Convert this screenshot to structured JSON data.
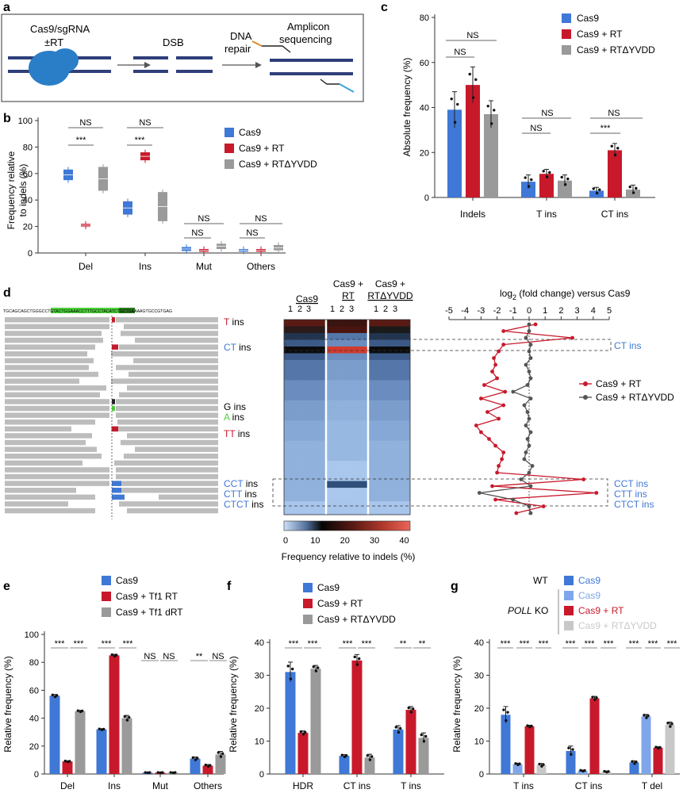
{
  "colors": {
    "blue": "#3f78d6",
    "red": "#c8192b",
    "gray": "#9a9a9a",
    "darkgray": "#555555",
    "lightblue": "#7fa6ea",
    "lightgray": "#c8c8c8",
    "green": "#4cd13a",
    "darkgreen": "#2a7a1e"
  },
  "panel_a": {
    "letter": "a",
    "step1": "Cas9/sgRNA",
    "step1b": "±RT",
    "step2": "DSB",
    "step3a": "DNA",
    "step3b": "repair",
    "step4a": "Amplicon",
    "step4b": "sequencing"
  },
  "panel_b": {
    "letter": "b",
    "ylabel1": "Frequency relative",
    "ylabel2": "to indels (%)",
    "yticks": [
      "0",
      "20",
      "40",
      "60",
      "80",
      "100"
    ],
    "sig": {
      "del_top": "NS",
      "del_bot": "***",
      "ins_top": "NS",
      "ins_bot": "***",
      "mut_top": "NS",
      "mut_bot": "NS",
      "oth_top": "NS",
      "oth_bot": "NS"
    },
    "legend": [
      "Cas9",
      "Cas9 + RT",
      "Cas9 + RTΔYVDD"
    ]
  },
  "panel_c": {
    "letter": "c",
    "ylabel": "Absolute frequency (%)",
    "yticks": [
      "0",
      "20",
      "40",
      "60",
      "80"
    ],
    "legend": [
      "Cas9",
      "Cas9 + RT",
      "Cas9 + RTΔYVDD"
    ],
    "sig": {
      "ind_top": "NS",
      "ind_bot": "NS",
      "t_top": "NS",
      "t_bot": "NS",
      "ct_top": "NS",
      "ct_bot": "***"
    }
  },
  "panel_d": {
    "letter": "d",
    "sequence": "TGCAGCAGCTGGGCCTGTACTGGAAACCTTTGCCTACATCTGCTGAAAAGTGCCGTGAG",
    "labels": [
      {
        "pre": "",
        "colored": "T",
        "post": " ins",
        "color": "red"
      },
      {
        "pre": "",
        "colored": "CT",
        "post": " ins",
        "color": "blue"
      },
      {
        "pre": "G",
        "colored": "",
        "post": " ins",
        "color": "none"
      },
      {
        "pre": "",
        "colored": "A",
        "post": " ins",
        "color": "green"
      },
      {
        "pre": "",
        "colored": "TT",
        "post": " ins",
        "color": "red"
      },
      {
        "pre": "",
        "colored": "CCT",
        "post": " ins",
        "color": "blue"
      },
      {
        "pre": "",
        "colored": "CTT",
        "post": " ins",
        "color": "blue"
      },
      {
        "pre": "",
        "colored": "CTCT",
        "post": " ins",
        "color": "blue"
      }
    ],
    "heat_headers": [
      "Cas9",
      "Cas9 +",
      "RT",
      "Cas9 +",
      "RTΔYVDD"
    ],
    "heat_reps": [
      "1",
      "2",
      "3",
      "1",
      "2",
      "3",
      "1",
      "2",
      "3"
    ],
    "cbar_ticks": [
      "0",
      "10",
      "20",
      "30",
      "40"
    ],
    "cbar_label": "Frequency relative to indels (%)",
    "fold_title": "log",
    "fold_title_sub": "2",
    "fold_title_rest": " (fold change) versus Cas9",
    "fold_ticks": [
      "-5",
      "-4",
      "-3",
      "-2",
      "-1",
      "0",
      "1",
      "2",
      "3",
      "4",
      "5"
    ],
    "fold_legend": [
      "Cas9 + RT",
      "Cas9 + RTΔYVDD"
    ],
    "fold_right_labels": [
      "CT ins",
      "CCT ins",
      "CTT ins",
      "CTCT ins"
    ]
  },
  "panel_e": {
    "letter": "e",
    "ylabel": "Relative frequency (%)",
    "yticks": [
      "0",
      "20",
      "40",
      "60",
      "80",
      "100"
    ],
    "legend": [
      "Cas9",
      "Cas9 + Tf1 RT",
      "Cas9 + Tf1 dRT"
    ],
    "sig": [
      "***",
      "***",
      "***",
      "***",
      "NS",
      "NS",
      "**",
      "NS"
    ]
  },
  "panel_f": {
    "letter": "f",
    "ylabel": "Relative frequency (%)",
    "yticks": [
      "0",
      "10",
      "20",
      "30",
      "40"
    ],
    "legend": [
      "Cas9",
      "Cas9 + RT",
      "Cas9 + RTΔYVDD"
    ],
    "sig": [
      "***",
      "***",
      "***",
      "***",
      "**",
      "**"
    ]
  },
  "panel_g": {
    "letter": "g",
    "ylabel": "Relative frequency (%)",
    "yticks": [
      "0",
      "10",
      "20",
      "30",
      "40"
    ],
    "wt_label": "WT",
    "ko_label": "POLL",
    "ko_rest": " KO",
    "legend": [
      "Cas9",
      "Cas9",
      "Cas9 + RT",
      "Cas9 + RTΔYVDD"
    ],
    "sig": [
      "***",
      "***",
      "***",
      "***",
      "***",
      "***",
      "***",
      "***",
      "***"
    ]
  },
  "chart_data": [
    {
      "panel": "b",
      "type": "box",
      "title": "",
      "ylabel": "Frequency relative to indels (%)",
      "ylim": [
        0,
        100
      ],
      "categories": [
        "Del",
        "Ins",
        "Mut",
        "Others"
      ],
      "series": [
        {
          "name": "Cas9",
          "values": [
            59,
            34,
            3,
            2
          ]
        },
        {
          "name": "Cas9 + RT",
          "values": [
            21,
            73,
            2,
            2
          ]
        },
        {
          "name": "Cas9 + RTΔYVDD",
          "values": [
            56,
            35,
            5,
            4
          ]
        }
      ]
    },
    {
      "panel": "c",
      "type": "bar",
      "ylabel": "Absolute frequency (%)",
      "ylim": [
        0,
        80
      ],
      "categories": [
        "Indels",
        "T ins",
        "CT ins"
      ],
      "series": [
        {
          "name": "Cas9",
          "values": [
            39,
            7,
            3
          ]
        },
        {
          "name": "Cas9 + RT",
          "values": [
            50,
            10.5,
            21
          ]
        },
        {
          "name": "Cas9 + RTΔYVDD",
          "values": [
            37,
            7.5,
            3.5
          ]
        }
      ]
    },
    {
      "panel": "d",
      "type": "line",
      "title": "",
      "xlabel": "log2 (fold change) versus Cas9",
      "xlim": [
        -5,
        5
      ],
      "series": [
        {
          "name": "Cas9 + RT",
          "values": [
            0.4,
            -1.6,
            2.7,
            -1.6,
            -1.9,
            -2.2,
            -2.1,
            -2.3,
            -2.0,
            -2.8,
            -1.5,
            -3.0,
            -1.6,
            -2.6,
            -1.9,
            -3.3,
            -3.0,
            -2.5,
            -2.1,
            -1.6,
            -1.7,
            -1.9,
            -2.0,
            3.4,
            -2.3,
            4.2,
            -2.1,
            0.9,
            -0.8
          ]
        },
        {
          "name": "Cas9 + RTΔYVDD",
          "values": [
            0.0,
            0.0,
            -0.2,
            0.1,
            0.0,
            0.1,
            -0.2,
            0.0,
            0.1,
            -0.1,
            -1.0,
            0.1,
            -0.3,
            -0.1,
            0.0,
            -0.2,
            0.1,
            -0.1,
            0.0,
            -0.2,
            -0.3,
            0.2,
            0.0,
            -0.5,
            0.1,
            -3.1,
            -1.0,
            0.0,
            0.1
          ]
        }
      ]
    },
    {
      "panel": "e",
      "type": "bar",
      "ylabel": "Relative frequency (%)",
      "ylim": [
        0,
        100
      ],
      "categories": [
        "Del",
        "Ins",
        "Mut",
        "Others"
      ],
      "series": [
        {
          "name": "Cas9",
          "values": [
            56,
            32,
            1,
            11
          ]
        },
        {
          "name": "Cas9 + Tf1 RT",
          "values": [
            9,
            85,
            1,
            6
          ]
        },
        {
          "name": "Cas9 + Tf1 dRT",
          "values": [
            45,
            40,
            1,
            14
          ]
        }
      ]
    },
    {
      "panel": "f",
      "type": "bar",
      "ylabel": "Relative frequency (%)",
      "ylim": [
        0,
        40
      ],
      "categories": [
        "HDR",
        "CT ins",
        "T ins"
      ],
      "series": [
        {
          "name": "Cas9",
          "values": [
            31,
            5.5,
            13.5
          ]
        },
        {
          "name": "Cas9 + RT",
          "values": [
            12.5,
            34.5,
            19.5
          ]
        },
        {
          "name": "Cas9 + RTΔYVDD",
          "values": [
            32,
            5,
            11
          ]
        }
      ]
    },
    {
      "panel": "g",
      "type": "bar",
      "ylabel": "Relative frequency (%)",
      "ylim": [
        0,
        40
      ],
      "categories": [
        "T ins",
        "CT ins",
        "T del"
      ],
      "series": [
        {
          "name": "WT Cas9",
          "values": [
            18,
            7,
            3.5
          ]
        },
        {
          "name": "POLL KO Cas9",
          "values": [
            3,
            1,
            17.5
          ]
        },
        {
          "name": "POLL KO Cas9 + RT",
          "values": [
            14.5,
            23,
            8
          ]
        },
        {
          "name": "POLL KO Cas9 + RTΔYVDD",
          "values": [
            2.7,
            0.7,
            15
          ]
        }
      ]
    }
  ]
}
